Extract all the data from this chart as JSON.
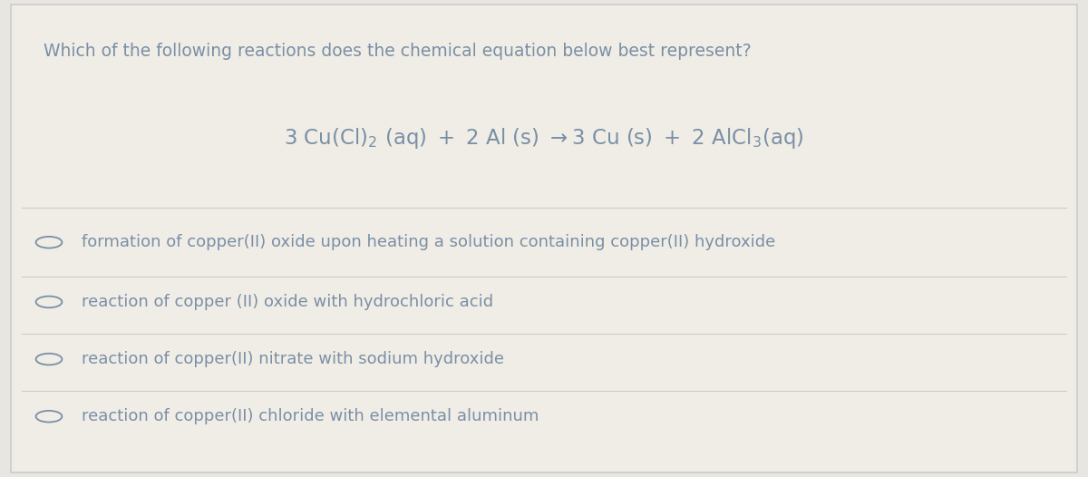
{
  "background_color": "#e8e6e0",
  "panel_color": "#f0ede6",
  "border_color": "#cccccc",
  "text_color": "#7a8fa6",
  "question_text": "Which of the following reactions does the chemical equation below best represent?",
  "question_fontsize": 13.5,
  "equation_fontsize": 16.5,
  "option_fontsize": 13,
  "options": [
    "formation of copper(II) oxide upon heating a solution containing copper(II) hydroxide",
    "reaction of copper (II) oxide with hydrochloric acid",
    "reaction of copper(II) nitrate with sodium hydroxide",
    "reaction of copper(II) chloride with elemental aluminum"
  ],
  "circle_color": "#7a8fa6",
  "divider_color": "#cccccc"
}
